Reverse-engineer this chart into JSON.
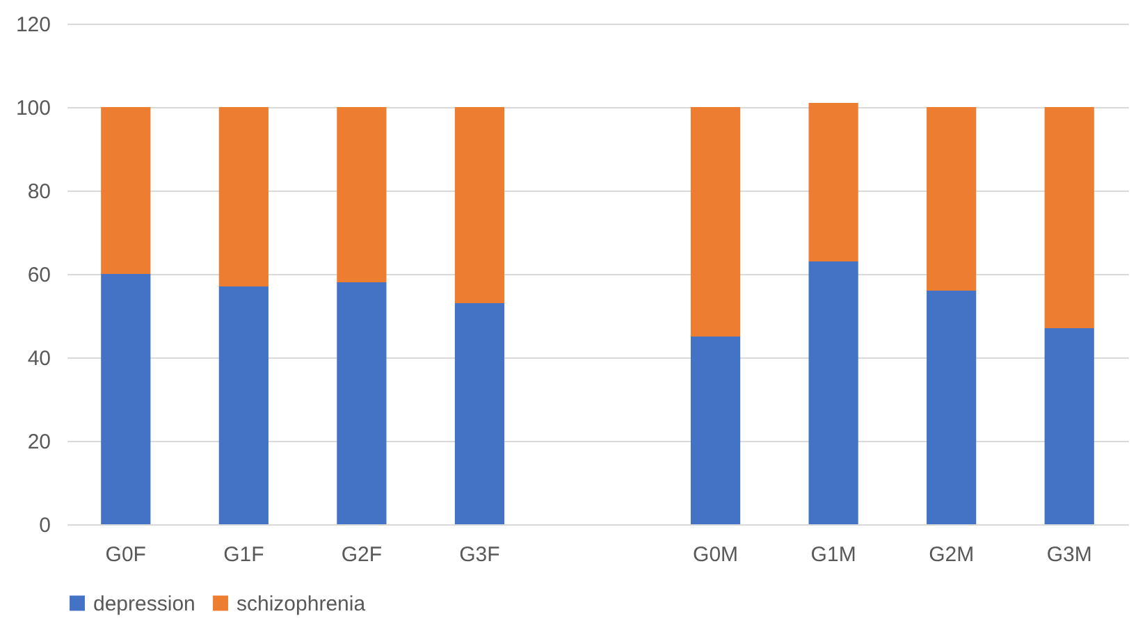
{
  "chart_data": {
    "type": "bar",
    "stacked": true,
    "categories": [
      "G0F",
      "G1F",
      "G2F",
      "G3F",
      null,
      "G0M",
      "G1M",
      "G2M",
      "G3M"
    ],
    "series": [
      {
        "name": "depression",
        "color": "#4472c4",
        "values": [
          60,
          57,
          58,
          53,
          null,
          45,
          63,
          56,
          47
        ]
      },
      {
        "name": "schizophrenia",
        "color": "#ed7d31",
        "values": [
          40,
          43,
          42,
          47,
          null,
          55,
          38,
          44,
          53
        ]
      }
    ],
    "ylim": [
      0,
      120
    ],
    "yticks": [
      0,
      20,
      40,
      60,
      80,
      100,
      120
    ],
    "grid": "y",
    "legend": "bottom"
  }
}
